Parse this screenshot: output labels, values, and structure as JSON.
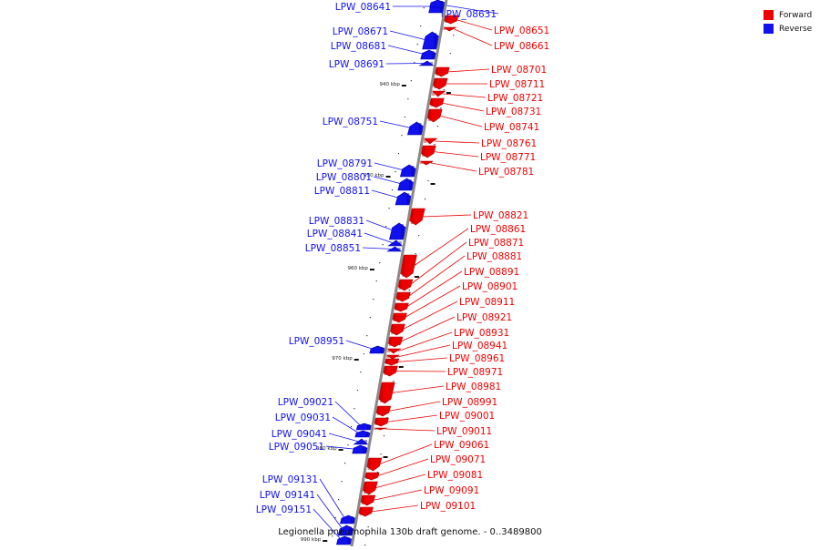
{
  "caption": "Legionella pneumophila 130b draft genome. - 0..3489800",
  "colors": {
    "forward": "#ee0000",
    "reverse": "#1111ee",
    "backbone": "#8a8a8a"
  },
  "legend": [
    {
      "label": "Forward",
      "strand": "forward"
    },
    {
      "label": "Reverse",
      "strand": "reverse"
    }
  ],
  "ticks": [
    "940 kbp",
    "950 kbp",
    "960 kbp",
    "970 kbp",
    "980 kbp",
    "990 kbp"
  ],
  "genes": [
    {
      "id": "LPW_08641",
      "strand": "reverse"
    },
    {
      "id": "LPW_08631",
      "strand": "reverse"
    },
    {
      "id": "LPW_08651",
      "strand": "forward"
    },
    {
      "id": "LPW_08661",
      "strand": "forward"
    },
    {
      "id": "LPW_08671",
      "strand": "reverse"
    },
    {
      "id": "LPW_08681",
      "strand": "reverse"
    },
    {
      "id": "LPW_08691",
      "strand": "reverse"
    },
    {
      "id": "LPW_08701",
      "strand": "forward"
    },
    {
      "id": "LPW_08711",
      "strand": "forward"
    },
    {
      "id": "LPW_08721",
      "strand": "forward"
    },
    {
      "id": "LPW_08731",
      "strand": "forward"
    },
    {
      "id": "LPW_08741",
      "strand": "forward"
    },
    {
      "id": "LPW_08751",
      "strand": "reverse"
    },
    {
      "id": "LPW_08761",
      "strand": "forward"
    },
    {
      "id": "LPW_08771",
      "strand": "forward"
    },
    {
      "id": "LPW_08781",
      "strand": "forward"
    },
    {
      "id": "LPW_08791",
      "strand": "reverse"
    },
    {
      "id": "LPW_08801",
      "strand": "reverse"
    },
    {
      "id": "LPW_08811",
      "strand": "reverse"
    },
    {
      "id": "LPW_08821",
      "strand": "forward"
    },
    {
      "id": "LPW_08831",
      "strand": "reverse"
    },
    {
      "id": "LPW_08841",
      "strand": "reverse"
    },
    {
      "id": "LPW_08851",
      "strand": "reverse"
    },
    {
      "id": "LPW_08861",
      "strand": "forward"
    },
    {
      "id": "LPW_08871",
      "strand": "forward"
    },
    {
      "id": "LPW_08881",
      "strand": "forward"
    },
    {
      "id": "LPW_08891",
      "strand": "forward"
    },
    {
      "id": "LPW_08901",
      "strand": "forward"
    },
    {
      "id": "LPW_08911",
      "strand": "forward"
    },
    {
      "id": "LPW_08921",
      "strand": "forward"
    },
    {
      "id": "LPW_08931",
      "strand": "forward"
    },
    {
      "id": "LPW_08941",
      "strand": "forward"
    },
    {
      "id": "LPW_08951",
      "strand": "reverse"
    },
    {
      "id": "LPW_08961",
      "strand": "forward"
    },
    {
      "id": "LPW_08971",
      "strand": "forward"
    },
    {
      "id": "LPW_08981",
      "strand": "forward"
    },
    {
      "id": "LPW_08991",
      "strand": "forward"
    },
    {
      "id": "LPW_09001",
      "strand": "forward"
    },
    {
      "id": "LPW_09011",
      "strand": "forward"
    },
    {
      "id": "LPW_09021",
      "strand": "reverse"
    },
    {
      "id": "LPW_09031",
      "strand": "reverse"
    },
    {
      "id": "LPW_09041",
      "strand": "reverse"
    },
    {
      "id": "LPW_09051",
      "strand": "reverse"
    },
    {
      "id": "LPW_09061",
      "strand": "forward"
    },
    {
      "id": "LPW_09071",
      "strand": "forward"
    },
    {
      "id": "LPW_09081",
      "strand": "forward"
    },
    {
      "id": "LPW_09091",
      "strand": "forward"
    },
    {
      "id": "LPW_09101",
      "strand": "forward"
    },
    {
      "id": "LPW_09131",
      "strand": "reverse"
    },
    {
      "id": "LPW_09141",
      "strand": "reverse"
    },
    {
      "id": "LPW_09151",
      "strand": "reverse"
    }
  ]
}
